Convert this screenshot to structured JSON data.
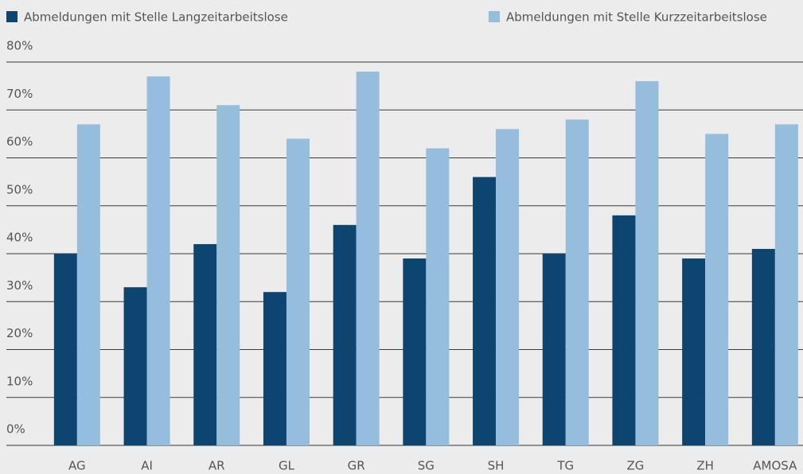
{
  "chart_data": {
    "type": "bar",
    "categories": [
      "AG",
      "AI",
      "AR",
      "GL",
      "GR",
      "SG",
      "SH",
      "TG",
      "ZG",
      "ZH",
      "AMOSA"
    ],
    "series": [
      {
        "name": "Abmeldungen mit Stelle Langzeitarbeitslose",
        "color": "#0b4570",
        "values": [
          40,
          33,
          42,
          32,
          46,
          39,
          56,
          40,
          48,
          39,
          41
        ]
      },
      {
        "name": "Abmeldungen mit Stelle Kurzzeitarbeitslose",
        "color": "#95bddc",
        "values": [
          67,
          77,
          71,
          64,
          78,
          62,
          66,
          68,
          76,
          65,
          67
        ]
      }
    ],
    "ylim": [
      0,
      80
    ],
    "yticks": [
      {
        "value": 0,
        "label": "0%"
      },
      {
        "value": 10,
        "label": "10%"
      },
      {
        "value": 20,
        "label": "20%"
      },
      {
        "value": 30,
        "label": "30%"
      },
      {
        "value": 40,
        "label": "40%"
      },
      {
        "value": 50,
        "label": "50%"
      },
      {
        "value": 60,
        "label": "60%"
      },
      {
        "value": 70,
        "label": "70%"
      },
      {
        "value": 80,
        "label": "80%"
      }
    ],
    "grid": true,
    "legend": "top"
  }
}
